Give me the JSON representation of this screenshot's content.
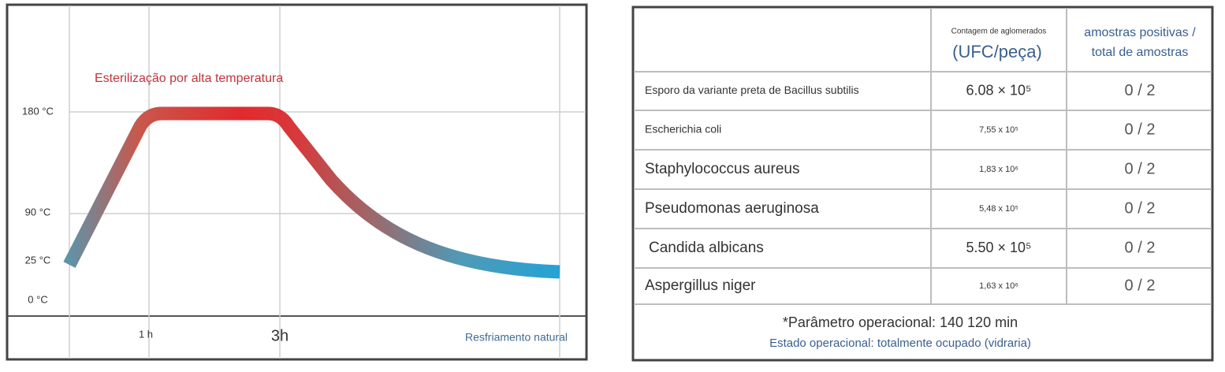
{
  "diagram": {
    "title": "Esterilização por alta temperatura",
    "y_labels": [
      "180 °C",
      "90 °C",
      "25 °C",
      "0 °C"
    ],
    "x_labels": [
      "1 h",
      "3h",
      "Resfriamento natural"
    ]
  },
  "table": {
    "count_header": "Contagem de aglomerados",
    "count_unit": "(UFC/peça)",
    "ratio_header": [
      "amostras positivas /",
      "total de amostras"
    ],
    "rows": [
      [
        "Esporo da variante preta de Bacillus subtilis",
        "6.08 × 10⁵",
        "0 / 2"
      ],
      [
        "Escherichia coli",
        "7,55 x 10⁵",
        "0 / 2"
      ],
      [
        "Staphylococcus aureus",
        "1,83 x 10⁶",
        "0 / 2"
      ],
      [
        "Pseudomonas aeruginosa",
        "5,48 x 10⁵",
        "0 / 2"
      ],
      [
        "Candida albicans",
        "5.50 × 10⁵",
        "0 / 2"
      ],
      [
        "Aspergillus niger",
        "1,63 x 10⁶",
        "0 / 2"
      ]
    ],
    "footer": [
      "*Parâmetro operacional: 140 120 min",
      "Estado operacional: totalmente ocupado (vidraria)"
    ]
  }
}
